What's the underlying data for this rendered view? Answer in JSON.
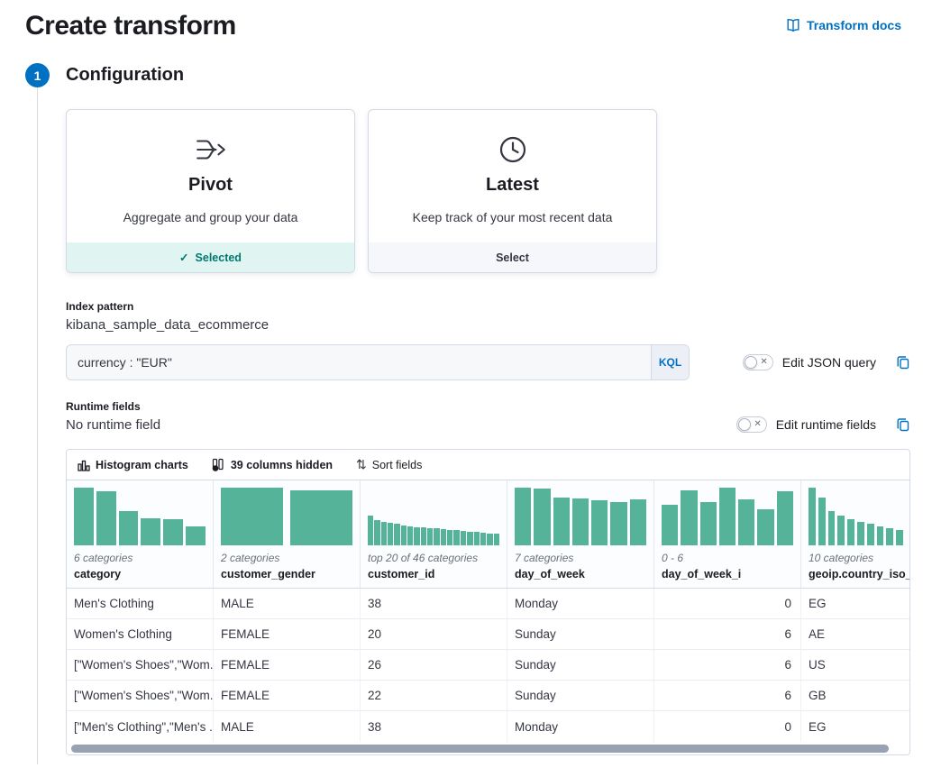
{
  "header": {
    "title": "Create transform",
    "docs_link": "Transform docs"
  },
  "step": {
    "number": "1",
    "title": "Configuration"
  },
  "cards": [
    {
      "title": "Pivot",
      "description": "Aggregate and group your data",
      "footer_label": "Selected",
      "selected": true
    },
    {
      "title": "Latest",
      "description": "Keep track of your most recent data",
      "footer_label": "Select",
      "selected": false
    }
  ],
  "index_pattern": {
    "label": "Index pattern",
    "value": "kibana_sample_data_ecommerce"
  },
  "query": {
    "value": "currency : \"EUR\"",
    "language": "KQL",
    "toggle_label": "Edit JSON query"
  },
  "runtime_fields": {
    "label": "Runtime fields",
    "value": "No runtime field",
    "toggle_label": "Edit runtime fields"
  },
  "grid": {
    "toolbar": {
      "histogram_button": "Histogram charts",
      "columns_button": "39 columns hidden",
      "sort_button": "Sort fields"
    },
    "columns": [
      {
        "field": "category",
        "subtitle": "6 categories",
        "bars": [
          1,
          0.94,
          0.59,
          0.47,
          0.45,
          0.33
        ]
      },
      {
        "field": "customer_gender",
        "subtitle": "2 categories",
        "bars": [
          1,
          0.96
        ]
      },
      {
        "field": "customer_id",
        "subtitle": "top 20 of 46 categories",
        "bars": [
          0.52,
          0.43,
          0.41,
          0.39,
          0.37,
          0.35,
          0.33,
          0.32,
          0.31,
          0.3,
          0.29,
          0.28,
          0.27,
          0.26,
          0.25,
          0.24,
          0.23,
          0.22,
          0.21,
          0.2
        ]
      },
      {
        "field": "day_of_week",
        "subtitle": "7 categories",
        "bars": [
          1,
          0.99,
          0.83,
          0.81,
          0.78,
          0.75,
          0.79
        ]
      },
      {
        "field": "day_of_week_i",
        "subtitle": "0 - 6",
        "bars": [
          0.7,
          0.95,
          0.75,
          1,
          0.8,
          0.62,
          0.93
        ],
        "align": "right"
      },
      {
        "field": "geoip.country_iso_",
        "subtitle": "10 categories",
        "bars": [
          1,
          0.83,
          0.6,
          0.52,
          0.46,
          0.41,
          0.37,
          0.33,
          0.3,
          0.27
        ]
      }
    ],
    "rows": [
      [
        "Men's Clothing",
        "MALE",
        "38",
        "Monday",
        "0",
        "EG"
      ],
      [
        "Women's Clothing",
        "FEMALE",
        "20",
        "Sunday",
        "6",
        "AE"
      ],
      [
        "[\"Women's Shoes\",\"Wom...",
        "FEMALE",
        "26",
        "Sunday",
        "6",
        "US"
      ],
      [
        "[\"Women's Shoes\",\"Wom...",
        "FEMALE",
        "22",
        "Sunday",
        "6",
        "GB"
      ],
      [
        "[\"Men's Clothing\",\"Men's ...",
        "MALE",
        "38",
        "Monday",
        "0",
        "EG"
      ]
    ]
  },
  "icons": {
    "check": "✓",
    "cross": "✕",
    "sort": "⇅"
  },
  "colors": {
    "accent_blue": "#0071c2",
    "histogram_bar": "#54b399",
    "selected_text": "#007871",
    "selected_bg": "#e0f5f1"
  }
}
